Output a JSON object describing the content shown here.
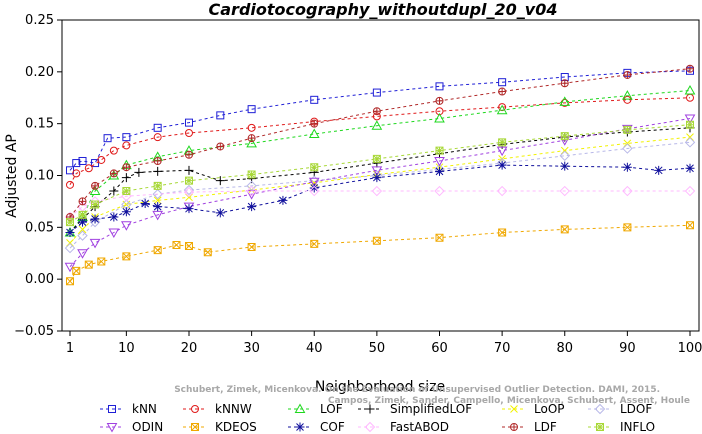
{
  "chart_data": {
    "type": "line",
    "title": "Cardiotocography_withoutdupl_20_v04",
    "xlabel": "Neighborhood size",
    "ylabel": "Adjusted AP",
    "xlim": [
      1,
      100
    ],
    "ylim": [
      -0.05,
      0.25
    ],
    "xticks": [
      1,
      10,
      20,
      30,
      40,
      50,
      60,
      70,
      80,
      90,
      100
    ],
    "yticks": [
      -0.05,
      0.0,
      0.05,
      0.1,
      0.15,
      0.2,
      0.25
    ],
    "ytick_labels": [
      "−0.05",
      "0.00",
      "0.05",
      "0.10",
      "0.15",
      "0.20",
      "0.25"
    ],
    "grid": false,
    "legend_placement": "bottom",
    "watermark": [
      "Schubert, Zimek, Micenkova. On the Evaluation of Unsupervised Outlier Detection. DAMI, 2015.",
      "Campos, Zimek, Sander, Campello, Micenkova, Schubert, Assent, Houle"
    ],
    "series": [
      {
        "name": "kNN",
        "color": "#1f1fd6",
        "marker": "square",
        "points": [
          [
            1,
            0.105
          ],
          [
            2,
            0.112
          ],
          [
            3,
            0.114
          ],
          [
            5,
            0.112
          ],
          [
            7,
            0.136
          ],
          [
            10,
            0.137
          ],
          [
            15,
            0.146
          ],
          [
            20,
            0.151
          ],
          [
            25,
            0.158
          ],
          [
            30,
            0.164
          ],
          [
            40,
            0.173
          ],
          [
            50,
            0.18
          ],
          [
            60,
            0.186
          ],
          [
            70,
            0.19
          ],
          [
            80,
            0.195
          ],
          [
            90,
            0.199
          ],
          [
            100,
            0.201
          ]
        ]
      },
      {
        "name": "kNNW",
        "color": "#e01a1a",
        "marker": "circle",
        "points": [
          [
            1,
            0.091
          ],
          [
            2,
            0.102
          ],
          [
            4,
            0.107
          ],
          [
            6,
            0.115
          ],
          [
            8,
            0.124
          ],
          [
            10,
            0.129
          ],
          [
            15,
            0.137
          ],
          [
            20,
            0.141
          ],
          [
            30,
            0.146
          ],
          [
            40,
            0.152
          ],
          [
            50,
            0.157
          ],
          [
            60,
            0.162
          ],
          [
            70,
            0.166
          ],
          [
            80,
            0.17
          ],
          [
            90,
            0.173
          ],
          [
            100,
            0.175
          ]
        ]
      },
      {
        "name": "LOF",
        "color": "#1ed81e",
        "marker": "triangle-up",
        "points": [
          [
            1,
            0.045
          ],
          [
            3,
            0.06
          ],
          [
            5,
            0.085
          ],
          [
            8,
            0.1
          ],
          [
            10,
            0.11
          ],
          [
            15,
            0.118
          ],
          [
            20,
            0.124
          ],
          [
            30,
            0.131
          ],
          [
            40,
            0.14
          ],
          [
            50,
            0.148
          ],
          [
            60,
            0.155
          ],
          [
            70,
            0.163
          ],
          [
            80,
            0.171
          ],
          [
            90,
            0.177
          ],
          [
            100,
            0.182
          ]
        ]
      },
      {
        "name": "SimplifiedLOF",
        "color": "#000000",
        "marker": "plus",
        "points": [
          [
            1,
            0.045
          ],
          [
            3,
            0.058
          ],
          [
            5,
            0.07
          ],
          [
            8,
            0.085
          ],
          [
            10,
            0.098
          ],
          [
            12,
            0.103
          ],
          [
            15,
            0.104
          ],
          [
            20,
            0.105
          ],
          [
            25,
            0.095
          ],
          [
            30,
            0.097
          ],
          [
            40,
            0.103
          ],
          [
            50,
            0.112
          ],
          [
            60,
            0.121
          ],
          [
            70,
            0.13
          ],
          [
            80,
            0.137
          ],
          [
            90,
            0.142
          ],
          [
            100,
            0.146
          ]
        ]
      },
      {
        "name": "LoOP",
        "color": "#f2f200",
        "marker": "x",
        "points": [
          [
            1,
            0.035
          ],
          [
            3,
            0.048
          ],
          [
            5,
            0.06
          ],
          [
            10,
            0.072
          ],
          [
            15,
            0.076
          ],
          [
            20,
            0.079
          ],
          [
            30,
            0.086
          ],
          [
            40,
            0.093
          ],
          [
            50,
            0.101
          ],
          [
            60,
            0.108
          ],
          [
            70,
            0.116
          ],
          [
            80,
            0.124
          ],
          [
            90,
            0.131
          ],
          [
            100,
            0.137
          ]
        ]
      },
      {
        "name": "LDOF",
        "color": "#b8b8e8",
        "marker": "diamond",
        "points": [
          [
            1,
            0.03
          ],
          [
            3,
            0.042
          ],
          [
            5,
            0.055
          ],
          [
            10,
            0.072
          ],
          [
            15,
            0.082
          ],
          [
            20,
            0.086
          ],
          [
            30,
            0.09
          ],
          [
            40,
            0.095
          ],
          [
            50,
            0.1
          ],
          [
            60,
            0.106
          ],
          [
            70,
            0.112
          ],
          [
            80,
            0.119
          ],
          [
            90,
            0.126
          ],
          [
            100,
            0.132
          ]
        ]
      },
      {
        "name": "ODIN",
        "color": "#a040e0",
        "marker": "triangle-down",
        "points": [
          [
            1,
            0.012
          ],
          [
            3,
            0.025
          ],
          [
            5,
            0.035
          ],
          [
            8,
            0.045
          ],
          [
            10,
            0.052
          ],
          [
            15,
            0.062
          ],
          [
            20,
            0.07
          ],
          [
            30,
            0.082
          ],
          [
            40,
            0.094
          ],
          [
            50,
            0.105
          ],
          [
            60,
            0.114
          ],
          [
            70,
            0.124
          ],
          [
            80,
            0.134
          ],
          [
            90,
            0.145
          ],
          [
            100,
            0.155
          ]
        ]
      },
      {
        "name": "KDEOS",
        "color": "#f0a800",
        "marker": "square-x",
        "points": [
          [
            1,
            -0.002
          ],
          [
            2,
            0.008
          ],
          [
            4,
            0.014
          ],
          [
            6,
            0.017
          ],
          [
            10,
            0.022
          ],
          [
            15,
            0.028
          ],
          [
            18,
            0.033
          ],
          [
            20,
            0.032
          ],
          [
            23,
            0.026
          ],
          [
            30,
            0.031
          ],
          [
            40,
            0.034
          ],
          [
            50,
            0.037
          ],
          [
            60,
            0.04
          ],
          [
            70,
            0.045
          ],
          [
            80,
            0.048
          ],
          [
            90,
            0.05
          ],
          [
            100,
            0.052
          ]
        ]
      },
      {
        "name": "COF",
        "color": "#10109c",
        "marker": "star",
        "points": [
          [
            1,
            0.045
          ],
          [
            3,
            0.055
          ],
          [
            5,
            0.058
          ],
          [
            8,
            0.06
          ],
          [
            10,
            0.065
          ],
          [
            13,
            0.073
          ],
          [
            15,
            0.07
          ],
          [
            20,
            0.068
          ],
          [
            25,
            0.064
          ],
          [
            30,
            0.07
          ],
          [
            35,
            0.076
          ],
          [
            40,
            0.088
          ],
          [
            50,
            0.098
          ],
          [
            60,
            0.104
          ],
          [
            70,
            0.11
          ],
          [
            80,
            0.109
          ],
          [
            90,
            0.108
          ],
          [
            95,
            0.105
          ],
          [
            100,
            0.107
          ]
        ]
      },
      {
        "name": "FastABOD",
        "color": "#ffb8ff",
        "marker": "diamond",
        "points": [
          [
            1,
            0.06
          ],
          [
            3,
            0.07
          ],
          [
            5,
            0.075
          ],
          [
            10,
            0.08
          ],
          [
            20,
            0.084
          ],
          [
            30,
            0.085
          ],
          [
            40,
            0.085
          ],
          [
            50,
            0.085
          ],
          [
            60,
            0.085
          ],
          [
            70,
            0.085
          ],
          [
            80,
            0.085
          ],
          [
            90,
            0.085
          ],
          [
            100,
            0.085
          ]
        ]
      },
      {
        "name": "LDF",
        "color": "#b02828",
        "marker": "circle-plus",
        "points": [
          [
            1,
            0.06
          ],
          [
            3,
            0.075
          ],
          [
            5,
            0.09
          ],
          [
            8,
            0.102
          ],
          [
            10,
            0.108
          ],
          [
            15,
            0.114
          ],
          [
            20,
            0.12
          ],
          [
            25,
            0.128
          ],
          [
            30,
            0.136
          ],
          [
            40,
            0.15
          ],
          [
            50,
            0.162
          ],
          [
            60,
            0.172
          ],
          [
            70,
            0.181
          ],
          [
            80,
            0.189
          ],
          [
            90,
            0.197
          ],
          [
            100,
            0.203
          ]
        ]
      },
      {
        "name": "INFLO",
        "color": "#a8d838",
        "marker": "square-cross",
        "points": [
          [
            1,
            0.055
          ],
          [
            3,
            0.062
          ],
          [
            5,
            0.072
          ],
          [
            10,
            0.085
          ],
          [
            15,
            0.09
          ],
          [
            20,
            0.095
          ],
          [
            30,
            0.101
          ],
          [
            40,
            0.108
          ],
          [
            50,
            0.116
          ],
          [
            60,
            0.124
          ],
          [
            70,
            0.132
          ],
          [
            80,
            0.138
          ],
          [
            90,
            0.144
          ],
          [
            100,
            0.149
          ]
        ]
      }
    ]
  }
}
